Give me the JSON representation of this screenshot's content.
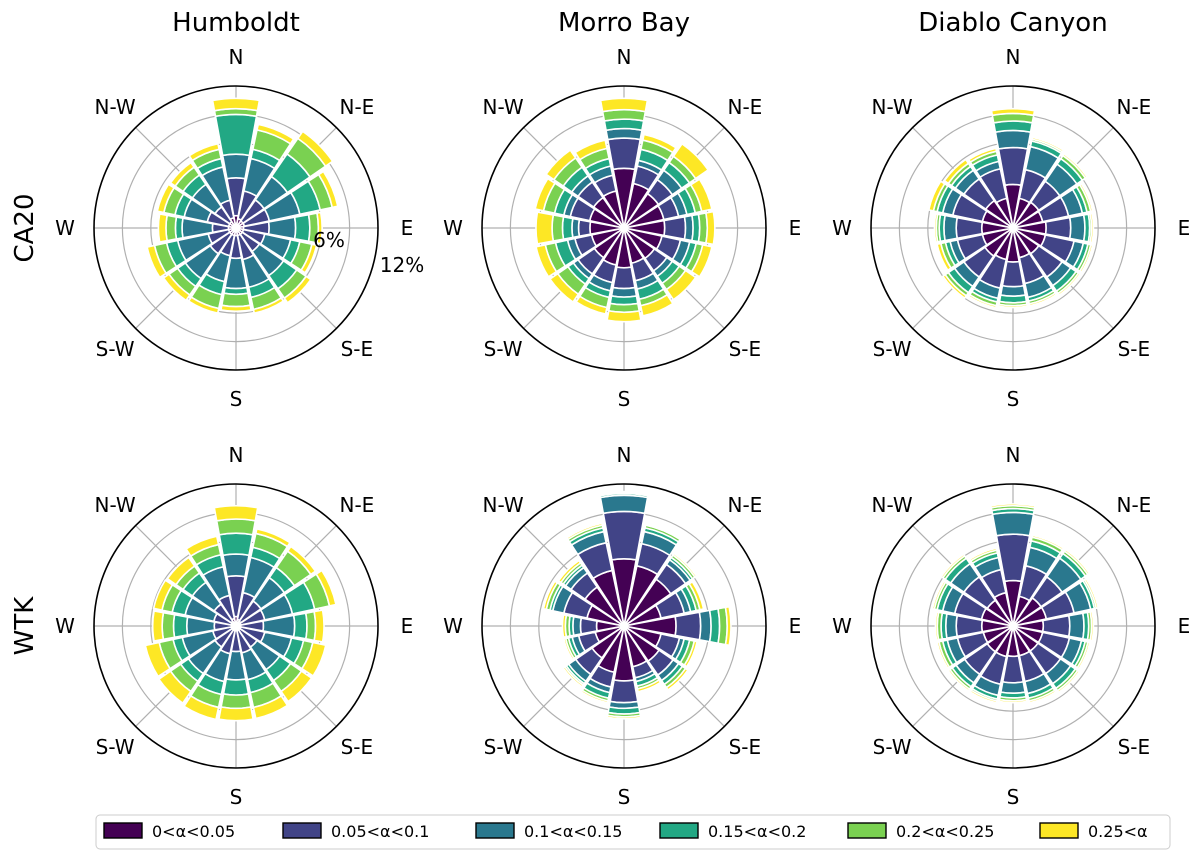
{
  "columns": [
    "Humboldt",
    "Morro Bay",
    "Diablo Canyon"
  ],
  "rows": [
    "CA20",
    "WTK"
  ],
  "directions": [
    "N",
    "N-E",
    "E",
    "S-E",
    "S",
    "S-W",
    "W",
    "N-W"
  ],
  "radial_labels": [
    "6%",
    "12%"
  ],
  "colors": [
    "#440154",
    "#414487",
    "#2a788e",
    "#22a884",
    "#7ad151",
    "#fde725"
  ],
  "chart_data": {
    "type": "windrose",
    "legend_placement": "bottom",
    "rmax": 15,
    "radial_ticks": [
      3,
      6,
      9,
      12,
      15
    ],
    "sectors": 16,
    "sector_angles_deg": [
      0,
      22.5,
      45,
      67.5,
      90,
      112.5,
      135,
      157.5,
      180,
      202.5,
      225,
      247.5,
      270,
      292.5,
      315,
      337.5
    ],
    "categories": [
      "0<α<0.05",
      "0.05<α<0.1",
      "0.1<α<0.15",
      "0.15<α<0.2",
      "0.2<α<0.25",
      "0.25<α"
    ],
    "panels": [
      {
        "row": "CA20",
        "column": "Humboldt",
        "cumulative": [
          [
            1.3,
            5.3,
            7.8,
            12.0,
            12.6,
            13.7
          ],
          [
            1.0,
            4.0,
            7.5,
            8.5,
            10.6,
            11.2
          ],
          [
            0.9,
            3.6,
            6.6,
            9.5,
            11.5,
            12.4
          ],
          [
            0.9,
            3.6,
            6.9,
            9.1,
            10.4,
            11.0
          ],
          [
            0.8,
            3.5,
            6.3,
            7.8,
            8.7,
            9.1
          ],
          [
            0.8,
            3.1,
            5.9,
            6.9,
            8.2,
            8.7
          ],
          [
            0.8,
            3.0,
            6.1,
            7.8,
            9.0,
            9.6
          ],
          [
            0.8,
            3.4,
            6.4,
            7.5,
            8.8,
            9.2
          ],
          [
            0.8,
            3.2,
            6.4,
            7.0,
            8.3,
            8.8
          ],
          [
            0.8,
            3.0,
            5.8,
            7.2,
            8.7,
            9.2
          ],
          [
            0.8,
            3.3,
            6.5,
            7.5,
            8.6,
            9.3
          ],
          [
            0.8,
            3.0,
            6.3,
            7.5,
            8.8,
            9.6
          ],
          [
            0.8,
            2.5,
            5.7,
            6.4,
            7.4,
            8.2
          ],
          [
            0.8,
            3.1,
            5.6,
            6.6,
            7.8,
            8.5
          ],
          [
            0.8,
            2.7,
            5.6,
            6.8,
            7.8,
            8.4
          ],
          [
            1.1,
            3.0,
            6.6,
            7.5,
            8.5,
            9.1
          ]
        ]
      },
      {
        "row": "CA20",
        "column": "Morro Bay",
        "cumulative": [
          [
            6.3,
            9.5,
            10.5,
            11.5,
            12.5,
            13.7
          ],
          [
            4.8,
            6.7,
            7.3,
            8.5,
            9.5,
            10.1
          ],
          [
            4.4,
            6.2,
            7.4,
            8.4,
            9.2,
            10.8
          ],
          [
            4.3,
            5.9,
            6.8,
            7.7,
            8.4,
            9.5
          ],
          [
            4.3,
            6.5,
            7.3,
            8.0,
            8.8,
            9.6
          ],
          [
            4.1,
            6.1,
            7.1,
            7.8,
            8.5,
            9.5
          ],
          [
            3.9,
            5.5,
            6.2,
            7.1,
            7.9,
            9.2
          ],
          [
            3.8,
            5.7,
            6.6,
            7.7,
            8.4,
            9.5
          ],
          [
            4.2,
            6.4,
            7.3,
            8.1,
            8.9,
            9.9
          ],
          [
            4.0,
            5.9,
            6.8,
            7.5,
            8.6,
            9.3
          ],
          [
            3.8,
            5.9,
            6.5,
            7.2,
            8.5,
            9.5
          ],
          [
            3.5,
            5.3,
            6.1,
            7.4,
            8.5,
            9.5
          ],
          [
            3.6,
            4.8,
            5.5,
            6.5,
            7.6,
            9.3
          ],
          [
            3.7,
            5.8,
            6.5,
            7.5,
            8.7,
            9.6
          ],
          [
            3.9,
            5.9,
            6.7,
            7.8,
            9.0,
            10.0
          ],
          [
            4.0,
            5.7,
            6.7,
            7.5,
            8.6,
            9.5
          ]
        ]
      },
      {
        "row": "CA20",
        "column": "Diablo Canyon",
        "cumulative": [
          [
            4.6,
            8.5,
            10.3,
            11.3,
            12.1,
            12.6
          ],
          [
            3.2,
            6.3,
            8.8,
            9.4,
            9.6,
            9.8
          ],
          [
            3.3,
            6.0,
            8.2,
            8.9,
            9.3,
            9.5
          ],
          [
            3.2,
            6.0,
            7.5,
            8.0,
            8.4,
            8.6
          ],
          [
            3.5,
            6.1,
            7.6,
            8.1,
            8.3,
            8.5
          ],
          [
            3.5,
            6.6,
            7.6,
            8.1,
            8.4,
            8.6
          ],
          [
            3.3,
            6.3,
            7.4,
            8.1,
            8.4,
            8.6
          ],
          [
            3.2,
            6.0,
            7.5,
            7.9,
            8.2,
            8.4
          ],
          [
            3.6,
            6.2,
            7.2,
            7.9,
            8.2,
            8.4
          ],
          [
            3.4,
            6.5,
            7.6,
            8.0,
            8.4,
            8.6
          ],
          [
            3.6,
            6.3,
            7.5,
            8.3,
            8.7,
            9.0
          ],
          [
            3.3,
            6.0,
            6.8,
            7.3,
            7.8,
            8.2
          ],
          [
            3.3,
            6.0,
            7.3,
            7.8,
            8.1,
            8.3
          ],
          [
            3.3,
            6.5,
            7.6,
            8.2,
            8.6,
            9.1
          ],
          [
            3.5,
            6.3,
            7.4,
            7.9,
            8.3,
            8.8
          ],
          [
            3.2,
            6.4,
            7.2,
            7.9,
            8.3,
            8.6
          ]
        ]
      },
      {
        "row": "WTK",
        "column": "Humboldt",
        "cumulative": [
          [
            1.0,
            5.3,
            7.6,
            9.8,
            11.3,
            12.7
          ],
          [
            0.7,
            3.6,
            7.4,
            8.5,
            10.0,
            10.5
          ],
          [
            0.6,
            3.2,
            6.2,
            7.5,
            9.6,
            10.2
          ],
          [
            0.5,
            3.1,
            6.1,
            8.5,
            10.1,
            10.8
          ],
          [
            0.5,
            2.9,
            6.2,
            7.5,
            8.4,
            9.3
          ],
          [
            0.5,
            3.1,
            6.0,
            7.3,
            8.3,
            9.7
          ],
          [
            0.5,
            2.7,
            5.6,
            7.0,
            8.4,
            9.7
          ],
          [
            0.5,
            2.9,
            5.8,
            7.2,
            8.8,
            10.0
          ],
          [
            0.5,
            2.7,
            5.7,
            7.3,
            8.7,
            10.0
          ],
          [
            0.5,
            3.0,
            6.0,
            7.4,
            8.8,
            10.1
          ],
          [
            0.5,
            2.7,
            6.1,
            7.1,
            8.4,
            9.9
          ],
          [
            0.5,
            2.5,
            5.8,
            6.8,
            8.3,
            9.8
          ],
          [
            0.5,
            2.3,
            5.2,
            6.6,
            7.8,
            8.8
          ],
          [
            0.5,
            2.4,
            5.5,
            6.9,
            8.0,
            8.9
          ],
          [
            0.6,
            2.8,
            5.6,
            6.8,
            7.7,
            8.8
          ],
          [
            0.8,
            3.3,
            6.4,
            7.7,
            8.8,
            9.7
          ]
        ]
      },
      {
        "row": "WTK",
        "column": "Morro Bay",
        "cumulative": [
          [
            7.1,
            12.1,
            13.8,
            14.0,
            14.1,
            14.2
          ],
          [
            6.5,
            8.9,
            10.2,
            10.6,
            10.9,
            11.0
          ],
          [
            6.0,
            7.9,
            8.5,
            8.8,
            9.1,
            9.3
          ],
          [
            4.0,
            6.5,
            7.2,
            7.8,
            8.2,
            8.6
          ],
          [
            5.5,
            8.1,
            9.2,
            10.1,
            10.9,
            11.3
          ],
          [
            4.0,
            6.0,
            6.5,
            7.1,
            7.6,
            7.9
          ],
          [
            4.5,
            6.3,
            7.0,
            7.5,
            7.9,
            8.2
          ],
          [
            4.4,
            5.6,
            6.0,
            6.5,
            6.8,
            7.1
          ],
          [
            5.8,
            8.1,
            8.7,
            9.3,
            9.6,
            9.8
          ],
          [
            5.0,
            6.6,
            7.2,
            7.8,
            8.1,
            8.3
          ],
          [
            4.1,
            6.2,
            7.1,
            7.4,
            7.6,
            7.8
          ],
          [
            3.1,
            4.9,
            5.6,
            6.0,
            6.3,
            6.5
          ],
          [
            2.9,
            4.6,
            5.4,
            5.8,
            6.2,
            6.5
          ],
          [
            4.0,
            6.5,
            7.7,
            8.0,
            8.4,
            8.7
          ],
          [
            5.0,
            6.8,
            7.5,
            7.8,
            8.1,
            8.4
          ],
          [
            6.0,
            9.0,
            10.2,
            10.6,
            10.9,
            11.1
          ]
        ]
      },
      {
        "row": "WTK",
        "column": "Diablo Canyon",
        "cumulative": [
          [
            4.8,
            9.7,
            12.0,
            12.4,
            12.7,
            12.9
          ],
          [
            3.2,
            6.5,
            8.5,
            9.2,
            9.6,
            9.8
          ],
          [
            3.6,
            6.3,
            8.7,
            9.3,
            9.6,
            9.8
          ],
          [
            3.6,
            6.6,
            8.4,
            8.8,
            9.0,
            9.2
          ],
          [
            3.2,
            6.0,
            7.5,
            8.0,
            8.3,
            8.5
          ],
          [
            3.2,
            6.1,
            7.4,
            7.8,
            8.1,
            8.3
          ],
          [
            3.2,
            6.1,
            7.4,
            8.0,
            8.3,
            8.5
          ],
          [
            3.2,
            6.0,
            7.3,
            7.8,
            8.1,
            8.3
          ],
          [
            3.2,
            6.0,
            7.1,
            7.6,
            7.9,
            8.1
          ],
          [
            3.3,
            6.3,
            7.5,
            7.9,
            8.1,
            8.3
          ],
          [
            3.3,
            6.2,
            7.3,
            7.8,
            8.1,
            8.3
          ],
          [
            3.2,
            6.0,
            7.1,
            7.6,
            8.0,
            8.2
          ],
          [
            3.3,
            6.0,
            7.1,
            7.6,
            8.0,
            8.2
          ],
          [
            3.4,
            6.3,
            7.6,
            8.2,
            8.5,
            8.7
          ],
          [
            3.3,
            6.3,
            8.0,
            8.7,
            9.0,
            9.2
          ],
          [
            3.6,
            6.1,
            7.4,
            7.9,
            8.2,
            8.4
          ]
        ]
      }
    ]
  }
}
